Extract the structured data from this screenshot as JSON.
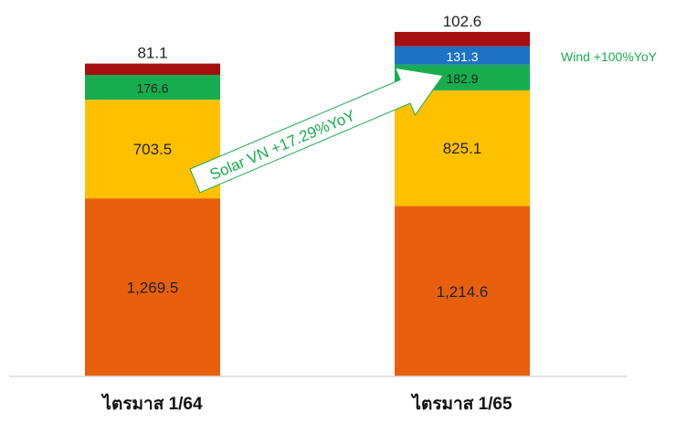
{
  "chart_data": {
    "type": "bar",
    "stacked": true,
    "categories": [
      "ไตรมาส 1/64",
      "ไตรมาส 1/65"
    ],
    "series": [
      {
        "color": "#E8600E",
        "label_color": "#222222",
        "values": [
          1269.5,
          1214.6
        ],
        "labels": [
          "1,269.5",
          "1,214.6"
        ]
      },
      {
        "color": "#FFC000",
        "label_color": "#222222",
        "values": [
          703.5,
          825.1
        ],
        "labels": [
          "703.5",
          "825.1"
        ]
      },
      {
        "color": "#17AD4E",
        "label_color": "#222222",
        "values": [
          176.6,
          182.9
        ],
        "labels": [
          "176.6",
          "182.9"
        ]
      },
      {
        "color": "#1C72C4",
        "label_color": "#ffffff",
        "values": [
          0,
          131.3
        ],
        "labels": [
          "",
          "131.3"
        ]
      },
      {
        "color": "#A50F0F",
        "label_color": "#222222",
        "values": [
          81.1,
          102.6
        ],
        "labels": [
          "81.1",
          "102.6"
        ]
      }
    ],
    "annotations": {
      "arrow_text": "Solar VN +17.29%YoY",
      "wind_text": "Wind +100%YoY",
      "annotation_color": "#17AD4E"
    },
    "grid": false,
    "legend": "none"
  }
}
